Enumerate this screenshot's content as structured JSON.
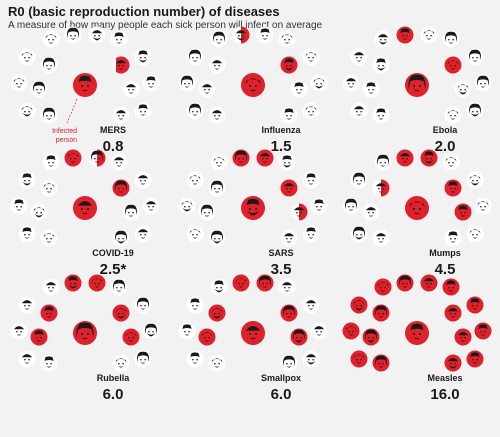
{
  "header": {
    "title": "R0 (basic reproduction number) of diseases",
    "subtitle": "A measure of how many people each sick person will infect on average"
  },
  "colors": {
    "infected": "#e0202a",
    "face": "#ffffff",
    "ink": "#1a1a1a",
    "background": "#f2f2f2"
  },
  "annotation": {
    "line1": "Infected",
    "line2": "person"
  },
  "chart_data": {
    "type": "table",
    "diseases": [
      {
        "name": "MERS",
        "r0": "0.8",
        "value": 0.8
      },
      {
        "name": "Influenza",
        "r0": "1.5",
        "value": 1.5
      },
      {
        "name": "Ebola",
        "r0": "2.0",
        "value": 2.0
      },
      {
        "name": "COVID-19",
        "r0": "2.5*",
        "value": 2.5
      },
      {
        "name": "SARS",
        "r0": "3.5",
        "value": 3.5
      },
      {
        "name": "Mumps",
        "r0": "4.5",
        "value": 4.5
      },
      {
        "name": "Rubella",
        "r0": "6.0",
        "value": 6.0
      },
      {
        "name": "Smallpox",
        "r0": "6.0",
        "value": 6.0
      },
      {
        "name": "Measles",
        "r0": "16.0",
        "value": 16.0
      }
    ]
  }
}
